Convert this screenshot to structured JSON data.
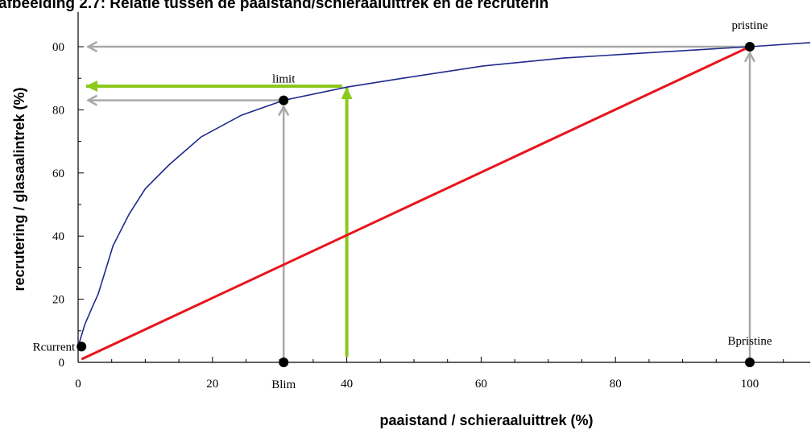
{
  "chart_data": {
    "type": "line",
    "title": "afbeelding 2.7: Relatie tussen de paaistand/schieraaluittrek en de recruterin",
    "x_label": "paaistand / schieraaluittrek (%)",
    "y_label": "recrutering / glasaalintrek (%)",
    "xlim": [
      0,
      109
    ],
    "ylim": [
      0,
      111
    ],
    "xticks": [
      0,
      20,
      40,
      60,
      80,
      100
    ],
    "yticks": [
      0,
      20,
      40,
      60,
      80,
      {
        "value": 100,
        "label": "00"
      }
    ],
    "xminorticks": [
      5,
      10,
      15,
      25,
      30,
      35,
      45,
      50,
      55,
      65,
      70,
      75,
      85,
      90,
      95,
      105
    ],
    "yminorticks": [
      10,
      30,
      50,
      70,
      90
    ],
    "series": [
      {
        "color": "#1f2a8c",
        "x": [
          0,
          1,
          2,
          3,
          5.2,
          7.6,
          10,
          13.5,
          18.3,
          24.3,
          30.6,
          40,
          48.3,
          60.3,
          72.3,
          84.3,
          100,
          109
        ],
        "y": [
          5,
          12,
          17,
          21.7,
          37,
          47,
          55,
          62.5,
          71.4,
          78.3,
          83,
          87.2,
          90,
          93.9,
          96.4,
          98,
          100,
          101.3
        ]
      },
      {
        "color": "#e8141c",
        "x": [
          0.5,
          100
        ],
        "y": [
          1,
          100
        ]
      }
    ],
    "arrows": [
      {
        "color": "#a8a8a8",
        "x": [
          100,
          1.5
        ],
        "y": [
          100,
          100
        ]
      },
      {
        "color": "#a8a8a8",
        "x": [
          100,
          100
        ],
        "y": [
          0,
          98
        ]
      },
      {
        "color": "#a8a8a8",
        "x": [
          30.6,
          30.6
        ],
        "y": [
          0,
          81
        ]
      },
      {
        "color": "#a8a8a8",
        "x": [
          30.6,
          1.5
        ],
        "y": [
          83,
          83
        ]
      },
      {
        "color": "#8cc81e",
        "x": [
          40,
          40
        ],
        "y": [
          1.8,
          87
        ]
      },
      {
        "color": "#8cc81e",
        "x": [
          39.3,
          1.2
        ],
        "y": [
          87.5,
          87.5
        ]
      }
    ],
    "points": [
      {
        "label": "Rcurrent",
        "x": 0.5,
        "y": 5,
        "label_pos": "left"
      },
      {
        "label": "limit",
        "x": 30.6,
        "y": 83,
        "label_pos": "above"
      },
      {
        "label": "pristine",
        "x": 100,
        "y": 100,
        "label_pos": "above"
      },
      {
        "label": "Blim",
        "x": 30.6,
        "y": 0,
        "label_pos": "below"
      },
      {
        "label": "Bpristine",
        "x": 100,
        "y": 0,
        "label_pos": "above"
      }
    ]
  }
}
